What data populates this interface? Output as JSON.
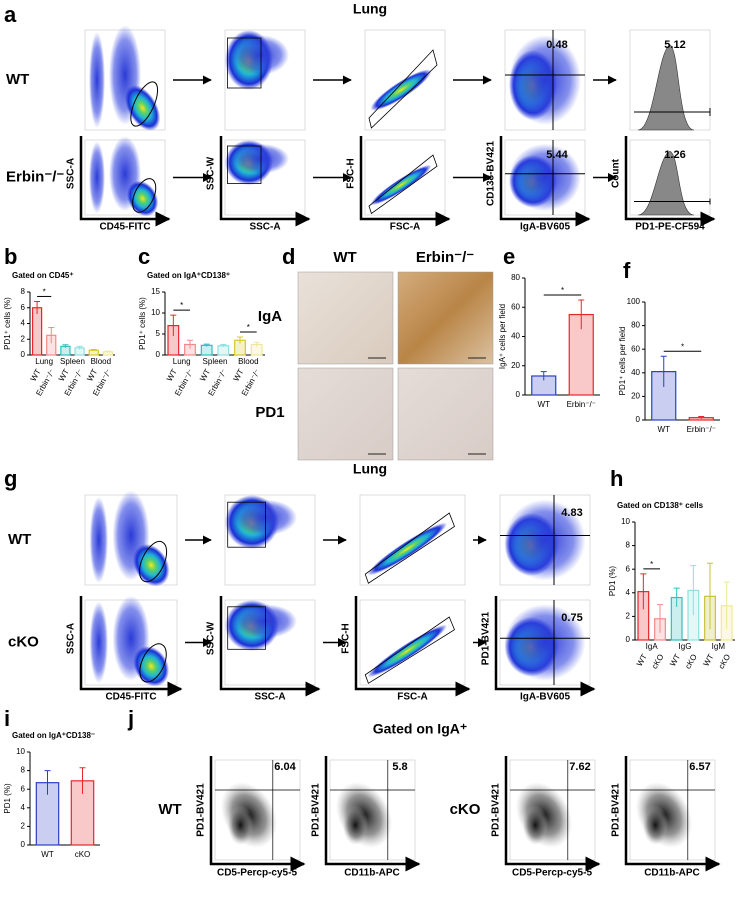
{
  "panel_a": {
    "label": "a",
    "title": "Lung",
    "rows": [
      "WT",
      "Erbin⁻/⁻"
    ],
    "x_labels": [
      "CD45-FITC",
      "SSC-A",
      "FSC-A",
      "IgA-BV605",
      "PD1-PE-CF594"
    ],
    "y_labels": [
      "SSC-A",
      "SSC-W",
      "FSC-H",
      "CD138-BV421",
      "Count"
    ],
    "gates": [
      [
        "0.48",
        "5.12"
      ],
      [
        "5.44",
        "1.26"
      ]
    ]
  },
  "panel_d": {
    "label": "d",
    "columns": [
      "WT",
      "Erbin⁻/⁻"
    ],
    "rows": [
      "IgA",
      "PD1"
    ]
  },
  "panel_g": {
    "label": "g",
    "title": "Lung",
    "rows": [
      "WT",
      "cKO"
    ],
    "x_labels": [
      "CD45-FITC",
      "SSC-A",
      "FSC-A",
      "IgA-BV605"
    ],
    "y_labels": [
      "SSC-A",
      "SSC-W",
      "FSC-H",
      "PD1-BV421"
    ],
    "gates": [
      "4.83",
      "0.75"
    ]
  },
  "panel_j": {
    "label": "j",
    "title": "Gated on IgA⁺",
    "groups": [
      "WT",
      "cKO"
    ],
    "x_labels": [
      "CD5-Percp-cy5-5",
      "CD11b-APC"
    ],
    "y_label": "PD1-BV421",
    "gates": [
      [
        "6.04",
        "5.8"
      ],
      [
        "7.62",
        "6.57"
      ]
    ]
  },
  "chart_data": [
    {
      "type": "bar",
      "label": "b",
      "title": "Gated on CD45⁺",
      "ylabel": "PD1⁺ cells (%)",
      "categories": [
        "WT",
        "Erbin⁻/⁻",
        "WT",
        "Erbin⁻/⁻",
        "WT",
        "Erbin⁻/⁻"
      ],
      "groups": [
        "Lung",
        "Spleen",
        "Blood"
      ],
      "values": [
        6.0,
        2.5,
        1.1,
        0.9,
        0.6,
        0.4
      ],
      "errors": [
        0.8,
        1.0,
        0.2,
        0.2,
        0.1,
        0.1
      ],
      "colors": [
        "#e8262b",
        "#f28a8a",
        "#2fbfbf",
        "#8fe0e0",
        "#d8c82e",
        "#efe79a"
      ],
      "significance": [
        "*",
        null,
        null
      ],
      "ylim": [
        0,
        8
      ],
      "yticks": [
        0,
        2,
        4,
        6,
        8
      ]
    },
    {
      "type": "bar",
      "label": "c",
      "title": "Gated on IgA⁺CD138⁺",
      "ylabel": "PD1⁺ cells (%)",
      "categories": [
        "WT",
        "Erbin⁻/⁻",
        "WT",
        "Erbin⁻/⁻",
        "WT",
        "Erbin⁻/⁻"
      ],
      "groups": [
        "Lung",
        "Spleen",
        "Blood"
      ],
      "values": [
        7.0,
        2.5,
        2.3,
        2.2,
        3.5,
        2.5
      ],
      "errors": [
        2.5,
        1.0,
        0.3,
        0.3,
        0.8,
        0.5
      ],
      "colors": [
        "#e8262b",
        "#f28a8a",
        "#2fbfbf",
        "#8fe0e0",
        "#d8c82e",
        "#efe79a"
      ],
      "significance": [
        "*",
        null,
        "*"
      ],
      "ylim": [
        0,
        15
      ],
      "yticks": [
        0,
        5,
        10,
        15
      ]
    },
    {
      "type": "bar",
      "label": "e",
      "ylabel": "IgA⁺ cells per field",
      "categories": [
        "WT",
        "Erbin⁻/⁻"
      ],
      "values": [
        13,
        55
      ],
      "errors": [
        3,
        10
      ],
      "colors": [
        "#2a3fc8",
        "#e8262b"
      ],
      "significance": [
        "*"
      ],
      "ylim": [
        0,
        80
      ],
      "yticks": [
        0,
        20,
        40,
        60,
        80
      ]
    },
    {
      "type": "bar",
      "label": "f",
      "ylabel": "PD1⁺ cells per field",
      "categories": [
        "WT",
        "Erbin⁻/⁻"
      ],
      "values": [
        41,
        2
      ],
      "errors": [
        13,
        1
      ],
      "colors": [
        "#2a3fc8",
        "#e8262b"
      ],
      "significance": [
        "*"
      ],
      "ylim": [
        0,
        100
      ],
      "yticks": [
        0,
        20,
        40,
        60,
        80,
        100
      ]
    },
    {
      "type": "bar",
      "label": "h",
      "title": "Gated on CD138⁺ cells",
      "ylabel": "PD1 (%)",
      "categories": [
        "WT",
        "cKO",
        "WT",
        "cKO",
        "WT",
        "cKO"
      ],
      "groups": [
        "IgA",
        "IgG",
        "IgM"
      ],
      "values": [
        4.1,
        1.8,
        3.6,
        4.2,
        3.7,
        2.9
      ],
      "errors": [
        1.5,
        1.2,
        0.8,
        2.1,
        2.8,
        2.0
      ],
      "colors": [
        "#e8262b",
        "#f28a8a",
        "#2fbfbf",
        "#8fe0e0",
        "#c9c23a",
        "#efe98f"
      ],
      "significance": [
        "*",
        null,
        null
      ],
      "ylim": [
        0,
        10
      ],
      "yticks": [
        0,
        2,
        4,
        6,
        8,
        10
      ]
    },
    {
      "type": "bar",
      "label": "i",
      "title": "Gated on IgA⁺CD138⁻",
      "ylabel": "PD1 (%)",
      "categories": [
        "WT",
        "cKO"
      ],
      "values": [
        6.7,
        6.9
      ],
      "errors": [
        1.3,
        1.4
      ],
      "colors": [
        "#2a3fc8",
        "#e8262b"
      ],
      "ylim": [
        0,
        10
      ],
      "yticks": [
        0,
        2,
        4,
        6,
        8,
        10
      ]
    }
  ]
}
